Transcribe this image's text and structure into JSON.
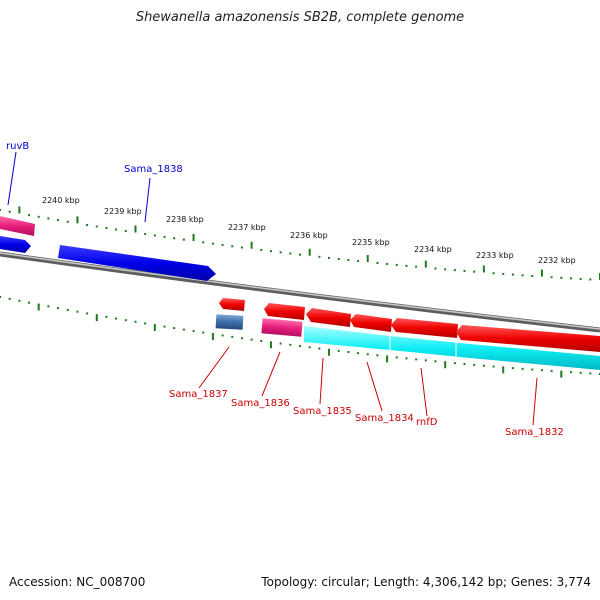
{
  "title": "Shewanella amazonensis SB2B, complete genome",
  "footer": {
    "accession": "Accession: NC_008700",
    "stats": "Topology: circular; Length: 4,306,142 bp; Genes: 3,774"
  },
  "scale_labels": [
    "2240 kbp",
    "2239 kbp",
    "2238 kbp",
    "2237 kbp",
    "2236 kbp",
    "2235 kbp",
    "2234 kbp",
    "2233 kbp",
    "2232 kbp"
  ],
  "gene_labels": {
    "top": [
      "ruvB",
      "Sama_1838"
    ],
    "bottom": [
      "Sama_1837",
      "Sama_1836",
      "Sama_1835",
      "Sama_1834",
      "rnfD",
      "Sama_1832"
    ]
  },
  "colors": {
    "blue_gene": "#0a0ae0",
    "red_gene": "#e00000",
    "pink_gene": "#e0207a",
    "cyan_gene": "#00e0e8",
    "steel_gene": "#3a6ea5",
    "tick": "#1f7a1f",
    "backbone": "#888888",
    "top_label": "#0000cc",
    "bottom_label": "#cc0000"
  }
}
